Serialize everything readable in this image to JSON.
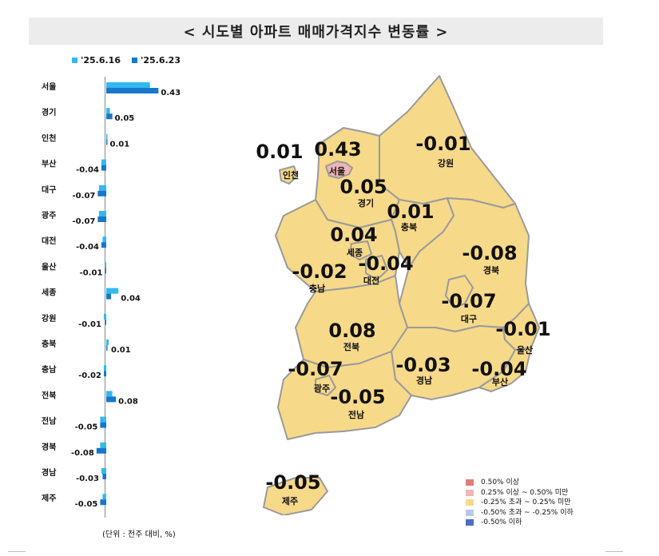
{
  "title": "< 시도별 아파트 매매가격지수 변동률 >",
  "legend": [
    {
      "label": "'25.6.16",
      "color": "#33b8f0"
    },
    {
      "label": "'25.6.23",
      "color": "#1877c9"
    }
  ],
  "unit_note": "(단위 : 전주 대비, %)",
  "chart_data": {
    "type": "bar",
    "orientation": "horizontal",
    "title": "< 시도별 아파트 매매가격지수 변동률 >",
    "categories": [
      "서울",
      "경기",
      "인천",
      "부산",
      "대구",
      "광주",
      "대전",
      "울산",
      "세종",
      "강원",
      "충북",
      "충남",
      "전북",
      "전남",
      "경북",
      "경남",
      "제주"
    ],
    "series": [
      {
        "name": "'25.6.16",
        "values": [
          0.36,
          0.03,
          0.0,
          -0.04,
          -0.06,
          -0.06,
          -0.03,
          -0.01,
          0.1,
          -0.02,
          0.02,
          -0.02,
          0.05,
          -0.05,
          -0.05,
          -0.04,
          -0.03
        ]
      },
      {
        "name": "'25.6.23",
        "values": [
          0.43,
          0.05,
          0.01,
          -0.04,
          -0.07,
          -0.07,
          -0.04,
          -0.01,
          0.04,
          -0.01,
          0.01,
          -0.02,
          0.08,
          -0.05,
          -0.08,
          -0.03,
          -0.05
        ]
      }
    ],
    "data_labels": [
      "0.43",
      "0.05",
      "0.01",
      "-0.04",
      "-0.07",
      "-0.07",
      "-0.04",
      "-0.01",
      "0.04",
      "-0.01",
      "0.01",
      "-0.02",
      "0.08",
      "-0.05",
      "-0.08",
      "-0.03",
      "-0.05"
    ]
  },
  "map": {
    "regions": [
      {
        "name": "서울",
        "value": "0.43",
        "fill": "#f0b5b5"
      },
      {
        "name": "경기",
        "value": "0.05",
        "fill": "#f7d98a"
      },
      {
        "name": "인천",
        "value": "0.01",
        "fill": "#f7d98a"
      },
      {
        "name": "강원",
        "value": "-0.01",
        "fill": "#f7d98a"
      },
      {
        "name": "충북",
        "value": "0.01",
        "fill": "#f7d98a"
      },
      {
        "name": "세종",
        "value": "0.04",
        "fill": "#f7d98a"
      },
      {
        "name": "대전",
        "value": "-0.04",
        "fill": "#f7d98a"
      },
      {
        "name": "충남",
        "value": "-0.02",
        "fill": "#f7d98a"
      },
      {
        "name": "경북",
        "value": "-0.08",
        "fill": "#f7d98a"
      },
      {
        "name": "대구",
        "value": "-0.07",
        "fill": "#f7d98a"
      },
      {
        "name": "울산",
        "value": "-0.01",
        "fill": "#f7d98a"
      },
      {
        "name": "전북",
        "value": "0.08",
        "fill": "#f7d98a"
      },
      {
        "name": "광주",
        "value": "-0.07",
        "fill": "#f7d98a"
      },
      {
        "name": "경남",
        "value": "-0.03",
        "fill": "#f7d98a"
      },
      {
        "name": "부산",
        "value": "-0.04",
        "fill": "#f7d98a"
      },
      {
        "name": "전남",
        "value": "-0.05",
        "fill": "#f7d98a"
      },
      {
        "name": "제주",
        "value": "-0.05",
        "fill": "#f7d98a"
      }
    ],
    "legend": [
      {
        "label": "0.50% 이상",
        "color": "#e37b7b"
      },
      {
        "label": "0.25% 이상 ~ 0.50% 미만",
        "color": "#f0b5b5"
      },
      {
        "label": "-0.25% 초과 ~ 0.25% 미만",
        "color": "#f7d98a"
      },
      {
        "label": "-0.50% 초과 ~ -0.25% 이하",
        "color": "#b8c9e8"
      },
      {
        "label": "-0.50% 이하",
        "color": "#4a6fc4"
      }
    ]
  }
}
